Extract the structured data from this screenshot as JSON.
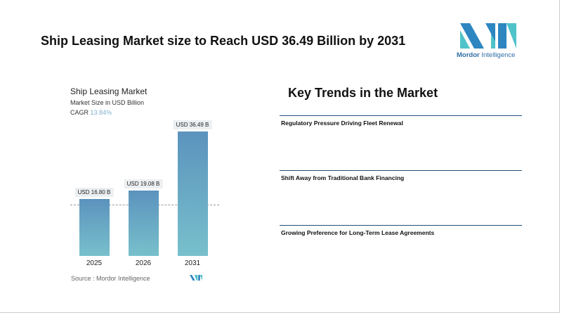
{
  "header": {
    "title": "Ship Leasing Market size to Reach USD 36.49 Billion by 2031",
    "logo_brand": "Mordor",
    "logo_suffix": "Intelligence"
  },
  "chart_data": {
    "type": "bar",
    "title": "Ship Leasing Market",
    "subtitle": "Market Size in USD Billion",
    "cagr_label": "CAGR",
    "cagr_value": "13.84%",
    "categories": [
      "2025",
      "2026",
      "2031"
    ],
    "values": [
      16.8,
      19.08,
      36.49
    ],
    "data_labels": [
      "USD 16.80 B",
      "USD 19.08 B",
      "USD 36.49 B"
    ],
    "ylim": [
      0,
      36.49
    ],
    "source": "Source :  Mordor Intelligence",
    "colors": {
      "top": "#5b93bd",
      "bottom": "#78c0cc"
    }
  },
  "trends": {
    "title": "Key Trends in the Market",
    "items": [
      "Regulatory Pressure Driving Fleet Renewal",
      "Shift Away from Traditional Bank Financing",
      "Growing Preference for Long-Term Lease Agreements"
    ]
  }
}
